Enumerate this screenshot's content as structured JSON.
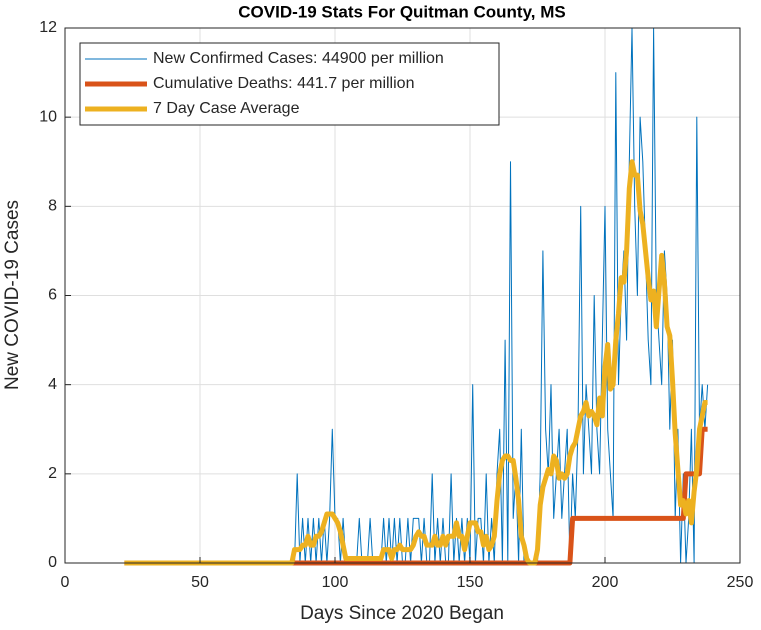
{
  "chart_data": {
    "type": "line",
    "title": "COVID-19 Stats For Quitman County, MS",
    "xlabel": "Days Since 2020 Began",
    "ylabel": "New COVID-19 Cases",
    "x": [
      22,
      23,
      24,
      25,
      26,
      27,
      28,
      29,
      30,
      31,
      32,
      33,
      34,
      35,
      36,
      37,
      38,
      39,
      40,
      41,
      42,
      43,
      44,
      45,
      46,
      47,
      48,
      49,
      50,
      51,
      52,
      53,
      54,
      55,
      56,
      57,
      58,
      59,
      60,
      61,
      62,
      63,
      64,
      65,
      66,
      67,
      68,
      69,
      70,
      71,
      72,
      73,
      74,
      75,
      76,
      77,
      78,
      79,
      80,
      81,
      82,
      83,
      84,
      85,
      86,
      87,
      88,
      89,
      90,
      91,
      92,
      93,
      94,
      95,
      96,
      97,
      98,
      99,
      100,
      101,
      102,
      103,
      104,
      105,
      106,
      107,
      108,
      109,
      110,
      111,
      112,
      113,
      114,
      115,
      116,
      117,
      118,
      119,
      120,
      121,
      122,
      123,
      124,
      125,
      126,
      127,
      128,
      129,
      130,
      131,
      132,
      133,
      134,
      135,
      136,
      137,
      138,
      139,
      140,
      141,
      142,
      143,
      144,
      145,
      146,
      147,
      148,
      149,
      150,
      151,
      152,
      153,
      154,
      155,
      156,
      157,
      158,
      159,
      160,
      161,
      162,
      163,
      164,
      165,
      166,
      167,
      168,
      169,
      170,
      171,
      172,
      173,
      174,
      175,
      176,
      177,
      178,
      179,
      180,
      181,
      182,
      183,
      184,
      185,
      186,
      187,
      188,
      189,
      190,
      191,
      192,
      193,
      194,
      195,
      196,
      197,
      198,
      199,
      200,
      201,
      202,
      203,
      204,
      205,
      206,
      207,
      208,
      209,
      210,
      211,
      212,
      213,
      214,
      215,
      216,
      217,
      218,
      219,
      220,
      221,
      222,
      223,
      224,
      225,
      226,
      227,
      228,
      229,
      230,
      231,
      232,
      233,
      234,
      235,
      236,
      237,
      238
    ],
    "series": [
      {
        "name": "New Confirmed Cases: 44900 per million",
        "color": "#0072BD",
        "width": 1,
        "values": [
          0,
          0,
          0,
          0,
          0,
          0,
          0,
          0,
          0,
          0,
          0,
          0,
          0,
          0,
          0,
          0,
          0,
          0,
          0,
          0,
          0,
          0,
          0,
          0,
          0,
          0,
          0,
          0,
          0,
          0,
          0,
          0,
          0,
          0,
          0,
          0,
          0,
          0,
          0,
          0,
          0,
          0,
          0,
          0,
          0,
          0,
          0,
          0,
          0,
          0,
          0,
          0,
          0,
          0,
          0,
          0,
          0,
          0,
          0,
          0,
          0,
          0,
          0,
          0,
          2,
          0,
          1,
          0,
          1,
          0,
          1,
          0,
          1,
          0,
          1,
          0,
          1,
          3,
          1,
          1,
          0,
          1,
          0,
          0,
          0,
          0,
          0,
          1,
          0,
          0,
          0,
          1,
          0,
          0,
          0,
          0,
          1,
          0,
          1,
          0,
          1,
          0,
          1,
          0,
          0,
          1,
          0,
          1,
          1,
          1,
          0,
          1,
          0,
          0,
          2,
          0,
          1,
          0,
          1,
          0,
          0,
          2,
          0,
          1,
          0,
          1,
          0,
          1,
          0,
          4,
          0,
          1,
          1,
          0,
          2,
          0,
          1,
          0,
          2,
          3,
          0,
          5,
          0,
          9,
          1,
          2,
          0,
          3,
          0,
          0,
          0,
          0,
          0,
          0,
          2,
          7,
          3,
          2,
          4,
          1,
          2,
          3,
          1,
          2,
          3,
          0,
          2,
          1,
          3,
          8,
          2,
          4,
          3,
          2,
          6,
          3,
          2,
          5,
          8,
          3,
          2,
          1,
          11,
          4,
          6,
          7,
          5,
          9,
          12,
          8,
          6,
          10,
          9,
          7,
          5,
          4,
          12,
          6,
          5,
          4,
          7,
          6,
          3,
          5,
          1,
          3,
          0,
          2,
          0,
          1,
          3,
          0,
          10,
          3,
          4,
          3,
          4
        ]
      },
      {
        "name": "Cumulative Deaths: 441.7 per million",
        "color": "#D95319",
        "width": 5,
        "values": [
          0,
          0,
          0,
          0,
          0,
          0,
          0,
          0,
          0,
          0,
          0,
          0,
          0,
          0,
          0,
          0,
          0,
          0,
          0,
          0,
          0,
          0,
          0,
          0,
          0,
          0,
          0,
          0,
          0,
          0,
          0,
          0,
          0,
          0,
          0,
          0,
          0,
          0,
          0,
          0,
          0,
          0,
          0,
          0,
          0,
          0,
          0,
          0,
          0,
          0,
          0,
          0,
          0,
          0,
          0,
          0,
          0,
          0,
          0,
          0,
          0,
          0,
          0,
          0,
          0,
          0,
          0,
          0,
          0,
          0,
          0,
          0,
          0,
          0,
          0,
          0,
          0,
          0,
          0,
          0,
          0,
          0,
          0,
          0,
          0,
          0,
          0,
          0,
          0,
          0,
          0,
          0,
          0,
          0,
          0,
          0,
          0,
          0,
          0,
          0,
          0,
          0,
          0,
          0,
          0,
          0,
          0,
          0,
          0,
          0,
          0,
          0,
          0,
          0,
          0,
          0,
          0,
          0,
          0,
          0,
          0,
          0,
          0,
          0,
          0,
          0,
          0,
          0,
          0,
          0,
          0,
          0,
          0,
          0,
          0,
          0,
          0,
          0,
          0,
          0,
          0,
          0,
          0,
          0,
          0,
          0,
          0,
          0,
          0,
          0,
          0,
          0,
          0,
          0,
          0,
          0,
          0,
          0,
          0,
          0,
          0,
          0,
          0,
          0,
          0,
          0,
          1,
          1,
          1,
          1,
          1,
          1,
          1,
          1,
          1,
          1,
          1,
          1,
          1,
          1,
          1,
          1,
          1,
          1,
          1,
          1,
          1,
          1,
          1,
          1,
          1,
          1,
          1,
          1,
          1,
          1,
          1,
          1,
          1,
          1,
          1,
          1,
          1,
          1,
          1,
          1,
          1,
          1,
          2,
          2,
          2,
          2,
          2,
          2,
          3,
          3,
          3
        ]
      },
      {
        "name": "7 Day Case Average",
        "color": "#EDB120",
        "width": 5,
        "values": [
          0,
          0,
          0,
          0,
          0,
          0,
          0,
          0,
          0,
          0,
          0,
          0,
          0,
          0,
          0,
          0,
          0,
          0,
          0,
          0,
          0,
          0,
          0,
          0,
          0,
          0,
          0,
          0,
          0,
          0,
          0,
          0,
          0,
          0,
          0,
          0,
          0,
          0,
          0,
          0,
          0,
          0,
          0,
          0,
          0,
          0,
          0,
          0,
          0,
          0,
          0,
          0,
          0,
          0,
          0,
          0,
          0,
          0,
          0,
          0,
          0,
          0,
          0,
          0.3,
          0.3,
          0.3,
          0.4,
          0.4,
          0.6,
          0.4,
          0.4,
          0.6,
          0.6,
          0.7,
          0.9,
          1.1,
          1.1,
          1.1,
          1.0,
          0.9,
          0.7,
          0.4,
          0.1,
          0.1,
          0.1,
          0.1,
          0.1,
          0.1,
          0.1,
          0.1,
          0.1,
          0.1,
          0.1,
          0.1,
          0.1,
          0.1,
          0.3,
          0.3,
          0.3,
          0.1,
          0.3,
          0.3,
          0.4,
          0.3,
          0.3,
          0.3,
          0.3,
          0.4,
          0.6,
          0.7,
          0.6,
          0.6,
          0.4,
          0.4,
          0.4,
          0.6,
          0.4,
          0.4,
          0.6,
          0.4,
          0.6,
          0.6,
          0.6,
          0.9,
          0.6,
          0.6,
          0.3,
          0.6,
          0.9,
          0.9,
          0.9,
          0.7,
          0.7,
          0.4,
          0.6,
          0.3,
          0.4,
          0.6,
          1.4,
          2.0,
          2.3,
          2.4,
          2.4,
          2.3,
          2.3,
          1.9,
          1.4,
          0.6,
          0.4,
          0.1,
          0,
          0,
          0,
          0.3,
          1.3,
          1.7,
          1.9,
          2.1,
          2.0,
          2.4,
          2.3,
          1.9,
          2.0,
          1.9,
          2.0,
          2.4,
          2.6,
          2.7,
          3.0,
          3.3,
          3.4,
          3.6,
          3.3,
          3.4,
          3.3,
          3.1,
          3.7,
          3.3,
          4.4,
          4.9,
          3.9,
          4.0,
          5.0,
          5.6,
          6.4,
          6.3,
          7.0,
          8.4,
          9.0,
          8.7,
          8.7,
          7.9,
          7.6,
          7.0,
          6.4,
          5.9,
          6.1,
          5.3,
          6.1,
          6.9,
          6.3,
          5.3,
          5.1,
          4.1,
          2.9,
          2.1,
          1.3,
          1.4,
          1.1,
          1.4,
          0.9,
          1.6,
          2.1,
          3.0,
          3.3,
          3.6,
          3.6
        ]
      }
    ],
    "xlim": [
      0,
      250
    ],
    "xticks": [
      0,
      50,
      100,
      150,
      200,
      250
    ],
    "ylim": [
      0,
      12
    ],
    "yticks": [
      0,
      2,
      4,
      6,
      8,
      10,
      12
    ],
    "grid": true,
    "legend": "northwest"
  }
}
